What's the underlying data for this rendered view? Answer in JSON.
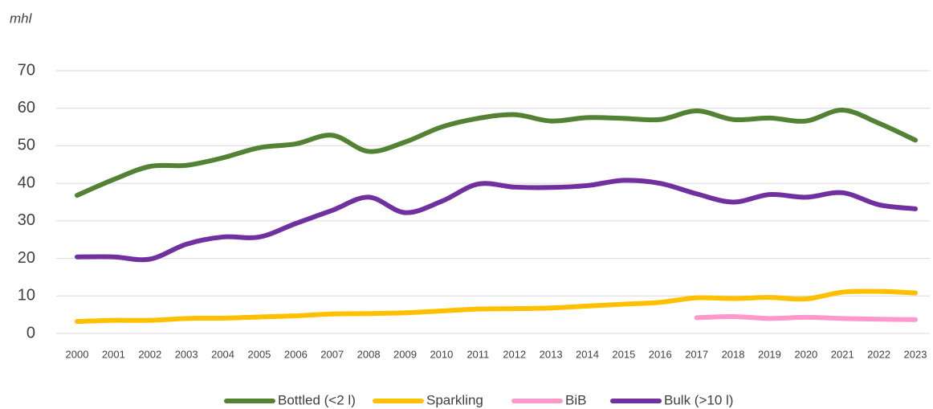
{
  "chart_data": {
    "type": "line",
    "y_label": "mhl",
    "categories": [
      "2000",
      "2001",
      "2002",
      "2003",
      "2004",
      "2005",
      "2006",
      "2007",
      "2008",
      "2009",
      "2010",
      "2011",
      "2012",
      "2013",
      "2014",
      "2015",
      "2016",
      "2017",
      "2018",
      "2019",
      "2020",
      "2021",
      "2022",
      "2023"
    ],
    "series": [
      {
        "name": "Bottled (<2 l)",
        "color": "#548235",
        "values": [
          36.8,
          41,
          44.5,
          44.8,
          46.8,
          49.5,
          50.5,
          52.8,
          48.5,
          51,
          55,
          57.3,
          58.3,
          56.6,
          57.5,
          57.3,
          57,
          59.3,
          57,
          57.4,
          56.6,
          59.5,
          56,
          51.5
        ]
      },
      {
        "name": "Sparkling",
        "color": "#ffc000",
        "values": [
          3.2,
          3.5,
          3.5,
          4,
          4.1,
          4.4,
          4.7,
          5.2,
          5.3,
          5.5,
          6,
          6.5,
          6.6,
          6.8,
          7.3,
          7.8,
          8.3,
          9.5,
          9.3,
          9.6,
          9.2,
          11,
          11.2,
          10.8
        ]
      },
      {
        "name": "BiB",
        "color": "#ff99cc",
        "values": [
          null,
          null,
          null,
          null,
          null,
          null,
          null,
          null,
          null,
          null,
          null,
          null,
          null,
          null,
          null,
          null,
          null,
          4.2,
          4.5,
          4,
          4.3,
          4,
          3.8,
          3.7
        ]
      },
      {
        "name": "Bulk (>10 l)",
        "color": "#7030a0",
        "values": [
          20.4,
          20.4,
          19.8,
          23.8,
          25.7,
          25.7,
          29.3,
          32.8,
          36.3,
          32.2,
          35.2,
          39.8,
          39,
          38.9,
          39.4,
          40.8,
          40,
          37.2,
          35,
          37,
          36.3,
          37.5,
          34.3,
          33.2
        ]
      }
    ],
    "ylim": [
      0,
      70
    ],
    "yticks": [
      0,
      10,
      20,
      30,
      40,
      50,
      60,
      70
    ],
    "grid": true,
    "legend": "bottom"
  }
}
